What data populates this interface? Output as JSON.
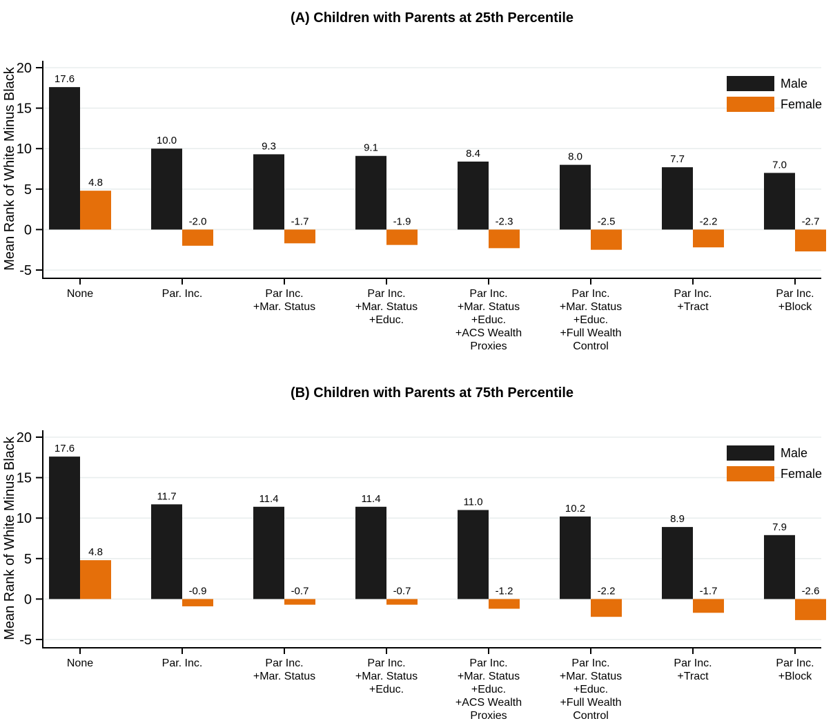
{
  "figure": {
    "background": "#ffffff",
    "axis_color": "#000000",
    "grid_color": "#e9eeee"
  },
  "legend": {
    "items": [
      {
        "label": "Male",
        "color": "#1b1b1b"
      },
      {
        "label": "Female",
        "color": "#e56f0a"
      }
    ],
    "position": "top-right"
  },
  "chart_data": [
    {
      "type": "bar",
      "title": "(A) Children with Parents at 25th Percentile",
      "ylabel": "Mean Rank of White Minus Black",
      "xlabel": "",
      "ylim": [
        -5,
        20
      ],
      "yticks": [
        20,
        15,
        10,
        5,
        0,
        -5
      ],
      "grid": true,
      "legend_position": "top-right",
      "categories": [
        [
          "None"
        ],
        [
          "Par. Inc."
        ],
        [
          "Par Inc.",
          "+Mar. Status"
        ],
        [
          "Par Inc.",
          "+Mar. Status",
          "+Educ."
        ],
        [
          "Par Inc.",
          "+Mar. Status",
          "+Educ.",
          "+ACS Wealth",
          "Proxies"
        ],
        [
          "Par Inc.",
          "+Mar. Status",
          "+Educ.",
          "+Full Wealth",
          "Control"
        ],
        [
          "Par Inc.",
          "+Tract"
        ],
        [
          "Par Inc.",
          "+Block"
        ]
      ],
      "series": [
        {
          "name": "Male",
          "color": "#1b1b1b",
          "values": [
            17.6,
            10.0,
            9.3,
            9.1,
            8.4,
            8.0,
            7.7,
            7.0
          ]
        },
        {
          "name": "Female",
          "color": "#e56f0a",
          "values": [
            4.8,
            -2.0,
            -1.7,
            -1.9,
            -2.3,
            -2.5,
            -2.2,
            -2.7
          ]
        }
      ]
    },
    {
      "type": "bar",
      "title": "(B) Children with Parents at 75th Percentile",
      "ylabel": "Mean Rank of White Minus Black",
      "xlabel": "",
      "ylim": [
        -5,
        20
      ],
      "yticks": [
        20,
        15,
        10,
        5,
        0,
        -5
      ],
      "grid": true,
      "legend_position": "top-right",
      "categories": [
        [
          "None"
        ],
        [
          "Par. Inc."
        ],
        [
          "Par Inc.",
          "+Mar. Status"
        ],
        [
          "Par Inc.",
          "+Mar. Status",
          "+Educ."
        ],
        [
          "Par Inc.",
          "+Mar. Status",
          "+Educ.",
          "+ACS Wealth",
          "Proxies"
        ],
        [
          "Par Inc.",
          "+Mar. Status",
          "+Educ.",
          "+Full Wealth",
          "Control"
        ],
        [
          "Par Inc.",
          "+Tract"
        ],
        [
          "Par Inc.",
          "+Block"
        ]
      ],
      "series": [
        {
          "name": "Male",
          "color": "#1b1b1b",
          "values": [
            17.6,
            11.7,
            11.4,
            11.4,
            11.0,
            10.2,
            8.9,
            7.9
          ]
        },
        {
          "name": "Female",
          "color": "#e56f0a",
          "values": [
            4.8,
            -0.9,
            -0.7,
            -0.7,
            -1.2,
            -2.2,
            -1.7,
            -2.6
          ]
        }
      ]
    }
  ]
}
